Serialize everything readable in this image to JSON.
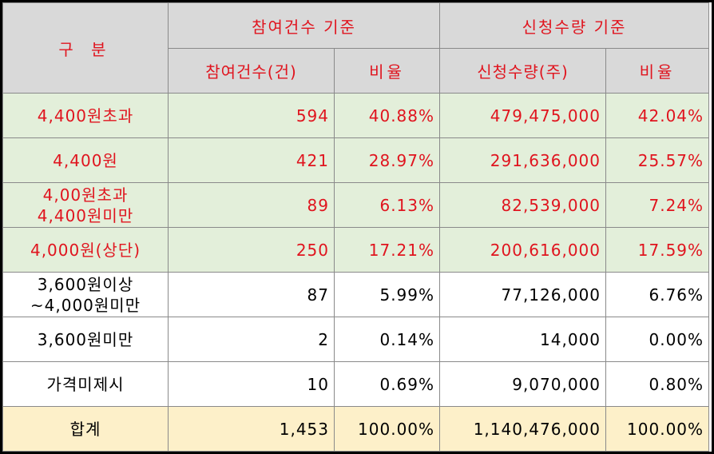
{
  "header": {
    "category": "구 분",
    "group1": "참여건수 기준",
    "group2": "신청수량 기준",
    "count_col": "참여건수(건)",
    "ratio_col1": "비율",
    "qty_col": "신청수량(주)",
    "ratio_col2": "비율"
  },
  "rows": [
    {
      "label": [
        "4,400원초과"
      ],
      "count": "594",
      "ratio1": "40.88%",
      "qty": "479,475,000",
      "ratio2": "42.04%"
    },
    {
      "label": [
        "4,400원"
      ],
      "count": "421",
      "ratio1": "28.97%",
      "qty": "291,636,000",
      "ratio2": "25.57%"
    },
    {
      "label": [
        "4,00원초과",
        "4,400원미만"
      ],
      "count": "89",
      "ratio1": "6.13%",
      "qty": "82,539,000",
      "ratio2": "7.24%"
    },
    {
      "label": [
        "4,000원(상단)"
      ],
      "count": "250",
      "ratio1": "17.21%",
      "qty": "200,616,000",
      "ratio2": "17.59%"
    },
    {
      "label": [
        "3,600원이상",
        "~4,000원미만"
      ],
      "count": "87",
      "ratio1": "5.99%",
      "qty": "77,126,000",
      "ratio2": "6.76%"
    },
    {
      "label": [
        "3,600원미만"
      ],
      "count": "2",
      "ratio1": "0.14%",
      "qty": "14,000",
      "ratio2": "0.00%"
    },
    {
      "label": [
        "가격미제시"
      ],
      "count": "10",
      "ratio1": "0.69%",
      "qty": "9,070,000",
      "ratio2": "0.80%"
    }
  ],
  "total": {
    "label": "합계",
    "count": "1,453",
    "ratio1": "100.00%",
    "qty": "1,140,476,000",
    "ratio2": "100.00%"
  },
  "colors": {
    "header_bg": "#d9d9d9",
    "highlight_bg": "#e3efda",
    "total_bg": "#fdf0c9",
    "red_text": "#e0141e"
  }
}
